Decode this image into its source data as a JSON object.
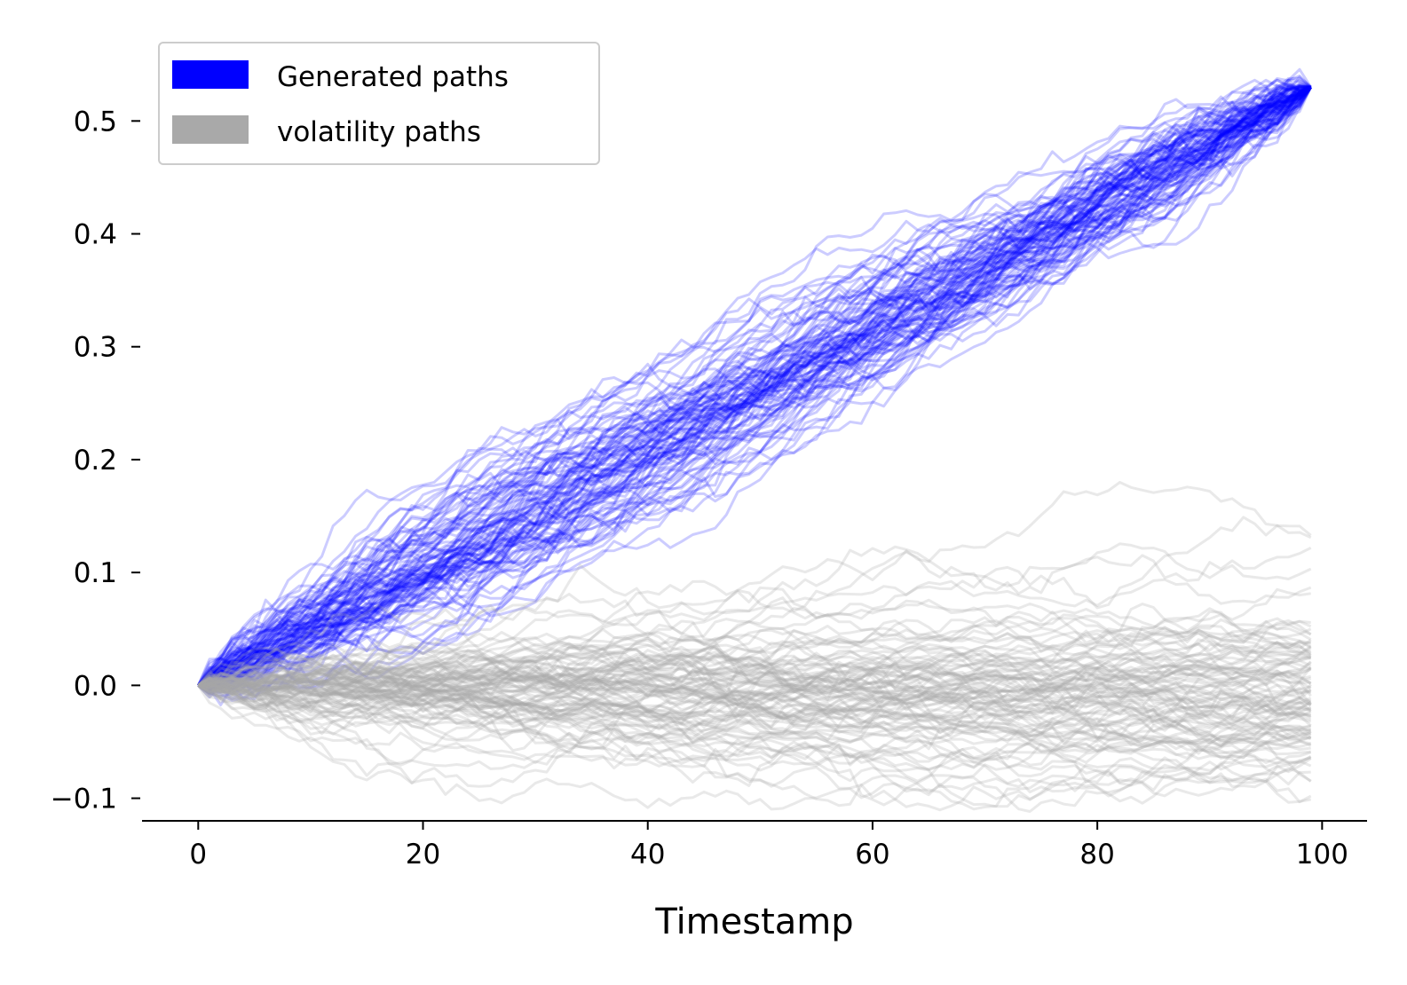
{
  "chart_data": {
    "type": "line",
    "title": "",
    "xlabel": "Timestamp",
    "ylabel": "",
    "xlim": [
      -5,
      104
    ],
    "ylim": [
      -0.12,
      0.56
    ],
    "x_ticks": [
      0,
      20,
      40,
      60,
      80,
      100
    ],
    "x_tick_labels": [
      "0",
      "20",
      "40",
      "60",
      "80",
      "100"
    ],
    "y_ticks": [
      -0.1,
      0.0,
      0.1,
      0.2,
      0.3,
      0.4,
      0.5
    ],
    "y_tick_labels": [
      "−0.1",
      "0.0",
      "0.1",
      "0.2",
      "0.3",
      "0.4",
      "0.5"
    ],
    "grid": false,
    "legend_position": "top-left",
    "x_range": [
      0,
      99
    ],
    "series": [
      {
        "name": "Generated paths",
        "color": "#0000ff",
        "opacity": 0.2,
        "path_count": 100,
        "start_value": 0.0,
        "end_value": 0.53,
        "min_value": -0.01,
        "max_value": 0.54
      },
      {
        "name": "volatility paths",
        "color": "#a9a9a9",
        "opacity": 0.25,
        "path_count": 100,
        "start_value": 0.0,
        "end_range": [
          -0.08,
          0.1
        ],
        "min_value": -0.09,
        "max_value": 0.105
      }
    ]
  }
}
